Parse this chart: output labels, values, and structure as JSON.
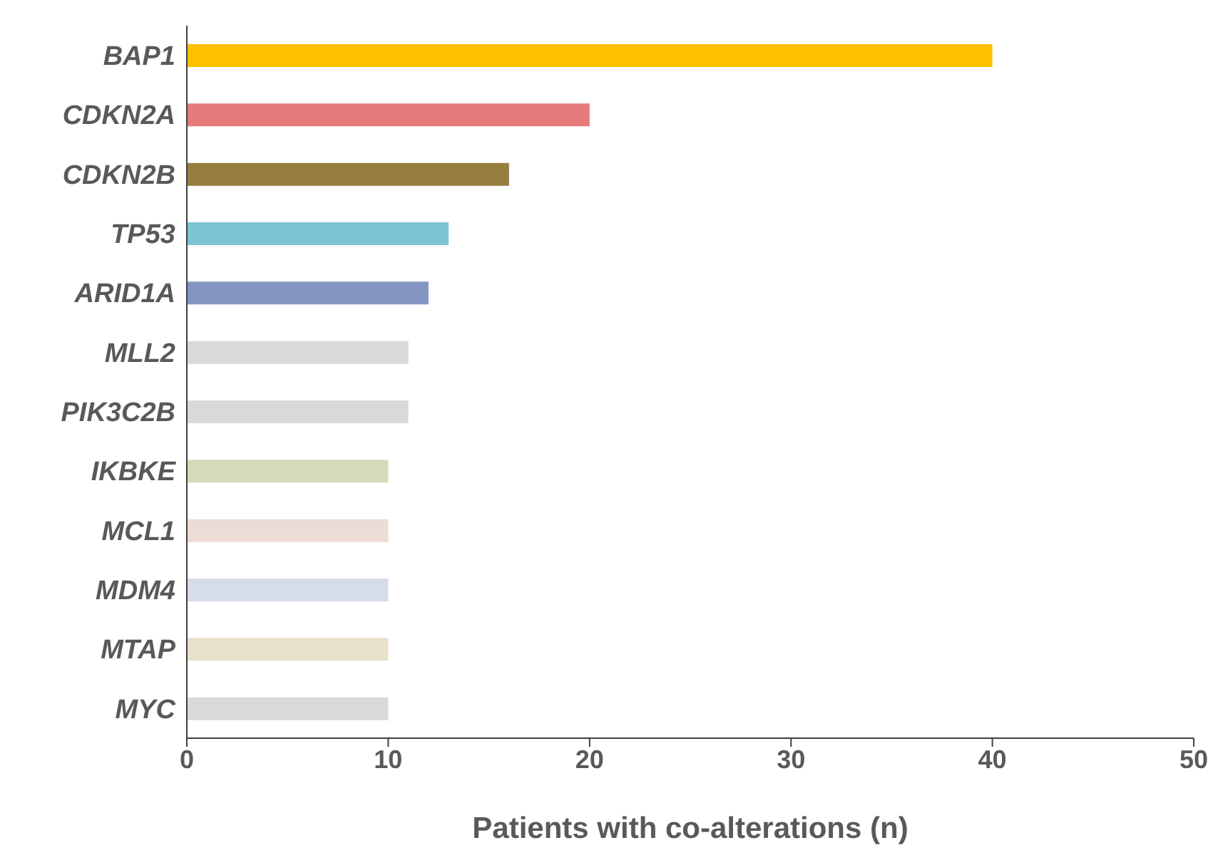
{
  "chart_data": {
    "type": "bar",
    "orientation": "horizontal",
    "xlabel": "Patients with co-alterations (n)",
    "categories": [
      "BAP1",
      "CDKN2A",
      "CDKN2B",
      "TP53",
      "ARID1A",
      "MLL2",
      "PIK3C2B",
      "IKBKE",
      "MCL1",
      "MDM4",
      "MTAP",
      "MYC"
    ],
    "values": [
      40,
      20,
      16,
      13,
      12,
      11,
      11,
      10,
      10,
      10,
      10,
      10
    ],
    "colors": [
      "#ffc000",
      "#e57b7b",
      "#957d3e",
      "#7cc4d4",
      "#8496c4",
      "#d9d9d9",
      "#d9d9d9",
      "#d7d9bb",
      "#ecdcd6",
      "#d6dce8",
      "#e9e0cb",
      "#d9d9d9"
    ],
    "xlim": [
      0,
      50
    ],
    "xticks": [
      0,
      10,
      20,
      30,
      40,
      50
    ],
    "grid": false
  }
}
